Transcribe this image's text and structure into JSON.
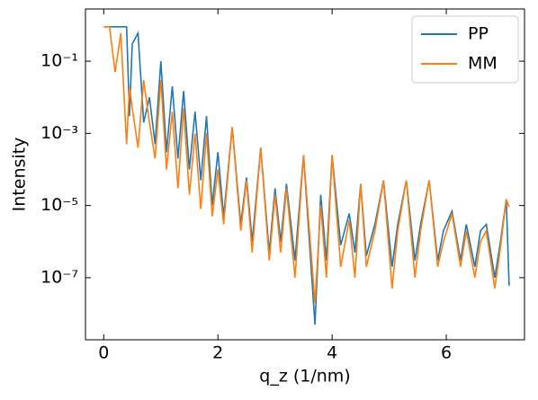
{
  "chart_data": {
    "type": "line",
    "xlabel": "q_z (1/nm)",
    "ylabel": "Intensity",
    "yscale": "log",
    "legend": "upper right",
    "x": [
      0,
      0.1,
      0.2,
      0.3,
      0.4,
      0.45,
      0.5,
      0.6,
      0.7,
      0.8,
      0.9,
      1.0,
      1.1,
      1.2,
      1.3,
      1.4,
      1.5,
      1.6,
      1.7,
      1.8,
      1.9,
      2.0,
      2.1,
      2.25,
      2.4,
      2.5,
      2.6,
      2.75,
      2.9,
      3.0,
      3.1,
      3.2,
      3.35,
      3.5,
      3.7,
      3.8,
      3.9,
      4.0,
      4.15,
      4.3,
      4.4,
      4.5,
      4.6,
      4.75,
      4.9,
      5.05,
      5.15,
      5.3,
      5.45,
      5.55,
      5.7,
      5.85,
      5.95,
      6.1,
      6.25,
      6.35,
      6.5,
      6.6,
      6.7,
      6.85,
      6.95,
      7.05,
      7.1
    ],
    "series": [
      {
        "name": "PP",
        "color": "#1f77b4",
        "values": [
          0.9,
          0.9,
          0.9,
          0.9,
          0.9,
          0.003,
          0.3,
          0.6,
          0.002,
          0.01,
          0.0005,
          0.1,
          0.0003,
          0.02,
          0.0002,
          0.015,
          0.0001,
          0.004,
          5e-05,
          0.003,
          1e-05,
          0.0003,
          5e-06,
          0.0015,
          3e-06,
          6e-05,
          1e-06,
          0.0004,
          5e-07,
          3e-05,
          1e-06,
          4e-05,
          3e-07,
          0.00025,
          5e-09,
          2e-05,
          3e-07,
          0.00025,
          8e-07,
          6e-06,
          5e-07,
          4e-05,
          4e-07,
          3e-06,
          5e-05,
          2e-07,
          3e-06,
          5e-05,
          3e-07,
          3e-06,
          5e-05,
          3e-07,
          2e-06,
          7e-06,
          3e-07,
          3e-06,
          2e-07,
          2e-06,
          3e-06,
          1e-07,
          1e-06,
          1.5e-05,
          6e-08
        ]
      },
      {
        "name": "MM",
        "color": "#ff7f0e",
        "values": [
          0.9,
          0.9,
          0.05,
          0.6,
          0.0005,
          0.02,
          0.005,
          0.0004,
          0.03,
          0.002,
          0.0002,
          0.03,
          0.0001,
          0.004,
          3e-05,
          0.005,
          2e-05,
          0.001,
          8e-06,
          0.001,
          5e-06,
          0.0001,
          3e-06,
          0.0015,
          2e-06,
          5e-05,
          5e-07,
          0.0004,
          3e-07,
          2e-05,
          5e-07,
          3e-05,
          1e-07,
          0.00025,
          2e-08,
          1e-05,
          1e-07,
          0.00025,
          2e-07,
          4e-06,
          1e-07,
          4e-05,
          2e-07,
          2e-06,
          5e-05,
          5e-08,
          2e-06,
          5e-05,
          1e-07,
          2e-06,
          5e-05,
          2e-07,
          1e-06,
          6e-06,
          2e-07,
          2e-06,
          1e-07,
          1e-06,
          2e-06,
          5e-08,
          7e-07,
          1.5e-05,
          9e-06
        ]
      }
    ],
    "xlim": [
      -0.32,
      7.37
    ],
    "ylim": [
      1.9e-09,
      2.8
    ],
    "xticks": [
      0,
      2,
      4,
      6
    ],
    "yticks": [
      {
        "value": 0.1,
        "label": "10⁻¹"
      },
      {
        "value": 0.001,
        "label": "10⁻³"
      },
      {
        "value": 1e-05,
        "label": "10⁻⁵"
      },
      {
        "value": 1e-07,
        "label": "10⁻⁷"
      }
    ]
  }
}
